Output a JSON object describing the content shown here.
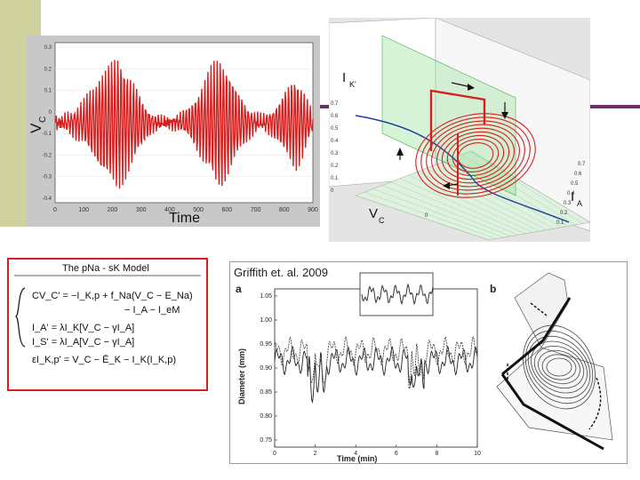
{
  "chart_data": [
    {
      "type": "line",
      "xlabel": "Time",
      "ylabel": "V",
      "ylabel_sub": "C",
      "xlim": [
        0,
        900
      ],
      "ylim": [
        -0.3,
        0.3
      ],
      "x_ticks": [
        "0",
        "100",
        "200",
        "300",
        "400",
        "500",
        "600",
        "700",
        "800",
        "900"
      ],
      "y_ticks": [
        "0.3",
        "0.2",
        "0.1",
        "0",
        "-0.1",
        "-0.2",
        "-0.3",
        "-0.4"
      ],
      "series_color": "#d62020",
      "description_points": {
        "x": [
          0,
          20,
          40,
          60,
          80,
          100,
          120,
          140,
          160,
          180,
          200,
          220,
          240,
          260,
          280,
          300,
          320,
          340,
          360,
          380,
          400,
          420,
          440,
          460,
          480,
          500,
          520,
          540,
          560,
          580,
          600,
          620,
          640,
          660,
          680,
          700,
          720,
          740,
          760,
          780,
          800,
          820,
          840,
          860,
          880,
          900
        ],
        "y": [
          0.02,
          -0.01,
          0.03,
          -0.04,
          0.06,
          -0.08,
          0.12,
          -0.15,
          0.2,
          -0.22,
          0.24,
          -0.26,
          0.22,
          -0.18,
          0.14,
          -0.1,
          0.06,
          -0.03,
          0.02,
          -0.01,
          0.01,
          -0.02,
          0.03,
          -0.05,
          0.08,
          -0.12,
          0.16,
          -0.2,
          0.24,
          -0.25,
          0.22,
          -0.17,
          0.12,
          -0.08,
          0.05,
          -0.03,
          0.02,
          -0.03,
          0.05,
          -0.08,
          0.12,
          -0.15,
          0.18,
          -0.14,
          0.08,
          -0.03
        ]
      }
    },
    {
      "type": "scatter",
      "description": "3D phase portrait",
      "labels": {
        "ik": "I",
        "ik_sub": "K'",
        "vc": "V",
        "vc_sub": "C",
        "ia": "I",
        "ia_sub": "A",
        "ia_tick": "0"
      },
      "z_ticks": [
        "0.7",
        "0.6",
        "0.5",
        "0.4",
        "0.3",
        "0.2",
        "0.1",
        "0"
      ],
      "right_ticks": [
        "0.7",
        "0.6",
        "0.5",
        "0.4",
        "0.3",
        "0.2",
        "0.1"
      ]
    },
    {
      "type": "line",
      "panel_label": "a",
      "credit": "Griffith et. al. 2009",
      "xlabel": "Time (min)",
      "ylabel": "Diameter (mm)",
      "xlim": [
        0,
        10
      ],
      "ylim": [
        0.75,
        1.05
      ],
      "x_ticks": [
        "0",
        "2",
        "4",
        "6",
        "8",
        "10"
      ],
      "y_ticks": [
        "1.05",
        "1.00",
        "0.95",
        "0.90",
        "0.85",
        "0.80",
        "0.75"
      ]
    },
    {
      "type": "scatter",
      "panel_label": "b",
      "description": "phase trajectory"
    }
  ],
  "model": {
    "title": "The pNa - sK Model",
    "eq1a": "CV_C' = −I_K,p + f_Na(V_C − E_Na)",
    "eq1b": "− I_A − I_eM",
    "eq2": "I_A' = λI_K[V_C − γI_A]",
    "eq3": "I_S' = λI_A[V_C − γI_A]",
    "eq4": "εI_K,p' = V_C − Ē_K − I_K(I_K,p)"
  },
  "colors": {
    "accent": "#6b2d6b",
    "sidebar": "#cfd19f",
    "trace": "#d62020",
    "box": "#d62020"
  }
}
